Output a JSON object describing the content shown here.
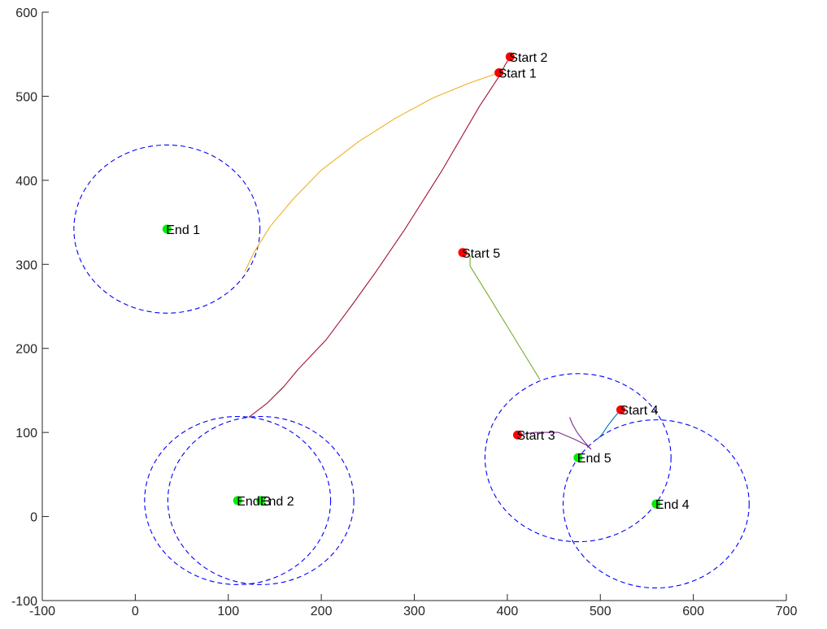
{
  "chart_data": {
    "type": "line",
    "title": "",
    "xlabel": "",
    "ylabel": "",
    "xlim": [
      -100,
      700
    ],
    "ylim": [
      -100,
      600
    ],
    "xticks": [
      -100,
      0,
      100,
      200,
      300,
      400,
      500,
      600,
      700
    ],
    "yticks": [
      -100,
      0,
      100,
      200,
      300,
      400,
      500,
      600
    ],
    "grid": false,
    "legend": "none",
    "start_points": [
      {
        "label": "Start 1",
        "x": 391,
        "y": 528
      },
      {
        "label": "Start 2",
        "x": 403,
        "y": 547
      },
      {
        "label": "Start 3",
        "x": 411,
        "y": 97
      },
      {
        "label": "Start 4",
        "x": 522,
        "y": 127
      },
      {
        "label": "Start 5",
        "x": 352,
        "y": 314
      }
    ],
    "end_points": [
      {
        "label": "End 1",
        "x": 34,
        "y": 342
      },
      {
        "label": "End 2",
        "x": 135,
        "y": 19
      },
      {
        "label": "End 3",
        "x": 110,
        "y": 19
      },
      {
        "label": "End 4",
        "x": 560,
        "y": 15
      },
      {
        "label": "End 5",
        "x": 476,
        "y": 70
      }
    ],
    "circles": [
      {
        "cx": 34,
        "cy": 342,
        "r": 100
      },
      {
        "cx": 110,
        "cy": 19,
        "r": 100
      },
      {
        "cx": 135,
        "cy": 19,
        "r": 100
      },
      {
        "cx": 476,
        "cy": 70,
        "r": 100
      },
      {
        "cx": 560,
        "cy": 15,
        "r": 100
      }
    ],
    "series": [
      {
        "color": "#EDB120",
        "x": [
          391,
          360,
          320,
          280,
          240,
          200,
          170,
          145,
          128,
          118
        ],
        "y": [
          528,
          516,
          498,
          474,
          446,
          412,
          378,
          345,
          315,
          292
        ]
      },
      {
        "color": "#A2142F",
        "x": [
          403,
          398,
          392,
          370,
          330,
          290,
          258,
          232,
          205,
          175,
          160,
          142,
          122
        ],
        "y": [
          547,
          538,
          525,
          488,
          412,
          342,
          290,
          250,
          210,
          175,
          155,
          135,
          118
        ]
      },
      {
        "color": "#7E2F8E",
        "x": [
          411,
          430,
          455,
          472,
          485,
          490,
          482,
          475,
          470,
          467
        ],
        "y": [
          97,
          100,
          100,
          92,
          85,
          80,
          90,
          100,
          110,
          118
        ]
      },
      {
        "color": "#0072BD",
        "x": [
          522,
          515,
          508,
          502,
          497
        ],
        "y": [
          127,
          118,
          108,
          98,
          92
        ]
      },
      {
        "color": "#77AC30",
        "x": [
          352,
          360,
          360,
          384,
          410,
          435
        ],
        "y": [
          314,
          310,
          298,
          255,
          208,
          163
        ]
      }
    ],
    "start_color": "#ff0000",
    "end_color": "#00ee00",
    "circle_color": "#0000ff"
  }
}
